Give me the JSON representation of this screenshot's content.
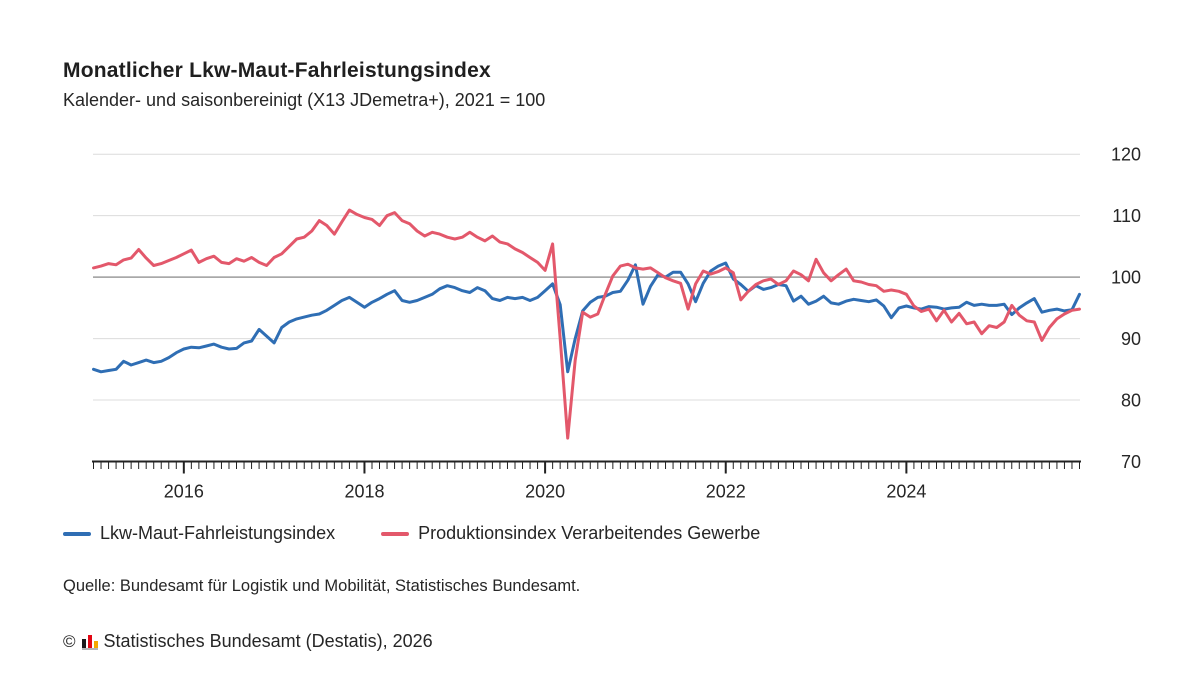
{
  "header": {
    "title": "Monatlicher Lkw-Maut-Fahrleistungsindex",
    "subtitle": "Kalender- und saisonbereinigt (X13 JDemetra+), 2021 = 100"
  },
  "source": {
    "text": "Quelle: Bundesamt für Logistik und Mobilität, Statistisches Bundesamt."
  },
  "footer": {
    "copyright_symbol": "©",
    "text": "Statistisches Bundesamt (Destatis), 2026",
    "logo_icon": "destatis-bars-icon",
    "logo_colors": [
      "#1a1a1a",
      "#e30613",
      "#f5a800"
    ]
  },
  "colors": {
    "grid": "#dcdcdc",
    "baseline_grid": "#9b9b9b",
    "axis": "#222222",
    "text": "#262626"
  },
  "chart_data": {
    "type": "line",
    "title": "Monatlicher Lkw-Maut-Fahrleistungsindex",
    "subtitle": "Kalender- und saisonbereinigt (X13 JDemetra+), 2021 = 100",
    "x_start_year": 2015,
    "x_start_month": 1,
    "frequency": "monthly",
    "x_end_year": 2025,
    "x_end_month": 12,
    "xticklabels": [
      "2016",
      "2018",
      "2020",
      "2022",
      "2024"
    ],
    "xtick_month_index": [
      12,
      36,
      60,
      84,
      108
    ],
    "yticks": [
      120,
      110,
      100,
      90,
      80,
      70
    ],
    "ylim": [
      70,
      121.5
    ],
    "baseline_value": 100,
    "grid": "horizontal-only",
    "legend_position": "bottom-left",
    "series": [
      {
        "name": "Lkw-Maut-Fahrleistungsindex",
        "color": "#2f6eb4",
        "values": [
          85.0,
          84.6,
          84.8,
          85.0,
          86.3,
          85.7,
          86.1,
          86.5,
          86.1,
          86.3,
          86.9,
          87.7,
          88.3,
          88.6,
          88.5,
          88.8,
          89.1,
          88.6,
          88.3,
          88.4,
          89.3,
          89.6,
          91.5,
          90.4,
          89.3,
          91.8,
          92.7,
          93.2,
          93.5,
          93.8,
          94.0,
          94.6,
          95.4,
          96.2,
          96.7,
          95.9,
          95.1,
          95.9,
          96.5,
          97.2,
          97.8,
          96.2,
          95.9,
          96.2,
          96.7,
          97.2,
          98.1,
          98.6,
          98.3,
          97.8,
          97.5,
          98.3,
          97.8,
          96.5,
          96.2,
          96.7,
          96.5,
          96.7,
          96.2,
          96.7,
          97.8,
          98.9,
          95.5,
          84.6,
          90.0,
          94.5,
          95.9,
          96.7,
          96.9,
          97.5,
          97.7,
          99.5,
          102.0,
          95.6,
          98.5,
          100.4,
          100.0,
          100.8,
          100.8,
          98.9,
          96.0,
          99.0,
          101.0,
          101.8,
          102.3,
          99.7,
          98.8,
          97.7,
          98.6,
          98.0,
          98.3,
          98.8,
          98.6,
          96.1,
          96.9,
          95.6,
          96.1,
          96.9,
          95.8,
          95.6,
          96.1,
          96.4,
          96.2,
          96.0,
          96.3,
          95.3,
          93.4,
          95.0,
          95.3,
          95.0,
          94.8,
          95.2,
          95.1,
          94.8,
          95.0,
          95.1,
          95.9,
          95.4,
          95.6,
          95.4,
          95.4,
          95.6,
          93.9,
          95.0,
          95.8,
          96.5,
          94.3,
          94.6,
          94.8,
          94.5,
          94.7,
          97.2
        ]
      },
      {
        "name": "Produktionsindex Verarbeitendes Gewerbe",
        "color": "#e3586b",
        "values": [
          101.5,
          101.8,
          102.2,
          102.0,
          102.8,
          103.1,
          104.5,
          103.1,
          101.9,
          102.2,
          102.7,
          103.2,
          103.8,
          104.4,
          102.4,
          103.0,
          103.4,
          102.4,
          102.2,
          103.0,
          102.6,
          103.2,
          102.4,
          101.9,
          103.2,
          103.8,
          105.0,
          106.2,
          106.5,
          107.5,
          109.2,
          108.4,
          107.0,
          109.0,
          110.9,
          110.2,
          109.7,
          109.4,
          108.4,
          110.0,
          110.5,
          109.2,
          108.7,
          107.5,
          106.7,
          107.3,
          107.0,
          106.5,
          106.2,
          106.5,
          107.3,
          106.5,
          105.9,
          106.7,
          105.7,
          105.4,
          104.6,
          104.0,
          103.2,
          102.4,
          101.1,
          105.4,
          90.0,
          73.8,
          86.5,
          94.3,
          93.5,
          94.0,
          97.2,
          100.2,
          101.8,
          102.1,
          101.5,
          101.3,
          101.5,
          100.7,
          99.9,
          99.4,
          99.0,
          94.8,
          98.9,
          101.0,
          100.5,
          100.9,
          101.5,
          100.7,
          96.3,
          97.7,
          98.8,
          99.4,
          99.7,
          98.8,
          99.4,
          101.0,
          100.4,
          99.4,
          102.9,
          100.7,
          99.4,
          100.4,
          101.3,
          99.4,
          99.2,
          98.8,
          98.6,
          97.7,
          97.9,
          97.7,
          97.2,
          95.3,
          94.4,
          94.8,
          92.9,
          94.6,
          92.7,
          94.1,
          92.4,
          92.7,
          90.8,
          92.1,
          91.8,
          92.7,
          95.4,
          93.8,
          92.9,
          92.7,
          89.7,
          91.8,
          93.2,
          94.0,
          94.6,
          94.8
        ]
      }
    ]
  }
}
